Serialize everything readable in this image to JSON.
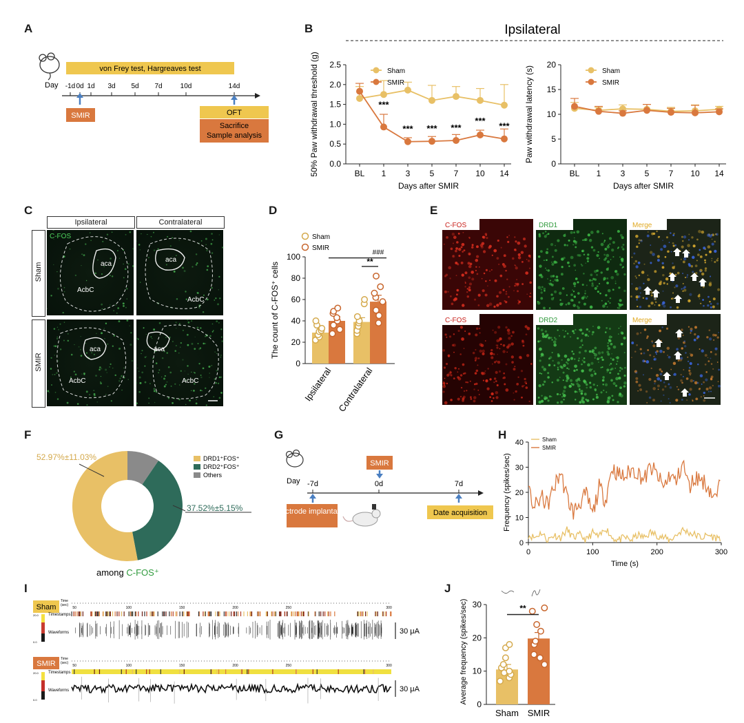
{
  "colors": {
    "sham": "#e8c066",
    "smir": "#d9783e",
    "sham_dark": "#d4a94c",
    "smir_dark": "#c8662d",
    "drd2": "#2e6b5a",
    "others": "#8a8a8a",
    "arrow": "#4a7fc1",
    "cfos": "#c8201a",
    "drd": "#2f9a3c",
    "merge": "#e8b830"
  },
  "panels": {
    "a": "A",
    "b": "B",
    "c": "C",
    "d": "D",
    "e": "E",
    "f": "F",
    "g": "G",
    "h": "H",
    "i": "I",
    "j": "J"
  },
  "timeline_a": {
    "day_label": "Day",
    "days": [
      "-1d",
      "0d",
      "1d",
      "3d",
      "5d",
      "7d",
      "10d",
      "14d"
    ],
    "test_bar": "von Frey test, Hargreaves test",
    "smir": "SMIR",
    "oft": "OFT",
    "sacrifice": "Sacrifice",
    "sample": "Sample analysis"
  },
  "panel_b_title": "Ipsilateral",
  "panel_c": {
    "col_ipsi": "Ipsilateral",
    "col_contra": "Contralateral",
    "row_sham": "Sham",
    "row_smir": "SMIR",
    "stain": "C-FOS",
    "aca": "aca",
    "acbc": "AcbC"
  },
  "panel_e": {
    "row1": [
      "C-FOS",
      "DRD1",
      "Merge"
    ],
    "row2": [
      "C-FOS",
      "DRD2",
      "Merge"
    ]
  },
  "panel_f": {
    "pct_drd1": "52.97%±11.03%",
    "pct_drd2": "37.52%±5.15%",
    "legend": [
      "DRD1⁺FOS⁺",
      "DRD2⁺FOS⁺",
      "Others"
    ],
    "among_prefix": "among ",
    "among_cfos": "C-FOS⁺"
  },
  "timeline_g": {
    "day_label": "Day",
    "days": [
      "-7d",
      "0d",
      "7d"
    ],
    "smir": "SMIR",
    "electrode": "Electrode implantation",
    "date_acq": "Date acquisition"
  },
  "panel_i": {
    "sham_tag": "Sham",
    "smir_tag": "SMIR",
    "time_lbl": "Time (sec)",
    "timestamps": "Timestamps",
    "waveforms": "Waveforms",
    "scale": "30 μA",
    "ticks": [
      "50",
      "100",
      "150",
      "200",
      "250",
      "300"
    ],
    "cbar_top": "20.0",
    "cbar_bot": "0.0"
  },
  "chart_data": [
    {
      "id": "B1",
      "type": "line",
      "title": "",
      "xlabel": "Days after SMIR",
      "ylabel": "50% Paw withdrawal threshold (g)",
      "categories": [
        "BL",
        "1",
        "3",
        "5",
        "7",
        "10",
        "14"
      ],
      "ylim": [
        0,
        2.5
      ],
      "yticks": [
        "0.0",
        "0.5",
        "1.0",
        "1.5",
        "2.0",
        "2.5"
      ],
      "legend": [
        "Sham",
        "SMIR"
      ],
      "series": [
        {
          "name": "Sham",
          "values": [
            1.65,
            1.75,
            1.86,
            1.6,
            1.7,
            1.6,
            1.48
          ],
          "errors": [
            0.3,
            0.35,
            0.2,
            0.38,
            0.25,
            0.3,
            0.52
          ]
        },
        {
          "name": "SMIR",
          "values": [
            1.83,
            0.93,
            0.56,
            0.57,
            0.59,
            0.73,
            0.63
          ],
          "errors": [
            0.2,
            0.32,
            0.1,
            0.12,
            0.15,
            0.12,
            0.25
          ]
        }
      ],
      "annotations": [
        "",
        "***",
        "***",
        "***",
        "***",
        "***",
        "***"
      ]
    },
    {
      "id": "B2",
      "type": "line",
      "title": "",
      "xlabel": "Days after SMIR",
      "ylabel": "Paw withdrawal latency (s)",
      "categories": [
        "BL",
        "1",
        "3",
        "5",
        "7",
        "10",
        "14"
      ],
      "ylim": [
        0,
        20
      ],
      "yticks": [
        "0",
        "5",
        "10",
        "15",
        "20"
      ],
      "legend": [
        "Sham",
        "SMIR"
      ],
      "series": [
        {
          "name": "Sham",
          "values": [
            11.2,
            10.8,
            11.1,
            11.0,
            10.6,
            10.7,
            11.0
          ],
          "errors": [
            1.2,
            0.6,
            0.8,
            1.0,
            0.8,
            1.2,
            0.6
          ]
        },
        {
          "name": "SMIR",
          "values": [
            11.6,
            10.6,
            10.2,
            10.8,
            10.4,
            10.3,
            10.5
          ],
          "errors": [
            1.6,
            1.0,
            0.5,
            1.2,
            0.8,
            1.5,
            0.6
          ]
        }
      ]
    },
    {
      "id": "D",
      "type": "bar",
      "ylabel": "The count of C-FOS⁺ cells",
      "categories": [
        "Ipsilateral",
        "Contralateral"
      ],
      "ylim": [
        0,
        100
      ],
      "yticks": [
        "0",
        "20",
        "40",
        "60",
        "80",
        "100"
      ],
      "legend": [
        "Sham",
        "SMIR"
      ],
      "series": [
        {
          "name": "Sham",
          "values": [
            29,
            39
          ],
          "errors": [
            3,
            4
          ],
          "points": [
            [
              22,
              25,
              27,
              30,
              31,
              33,
              36,
              40
            ],
            [
              28,
              31,
              35,
              38,
              40,
              44,
              56,
              60
            ]
          ]
        },
        {
          "name": "SMIR",
          "values": [
            40,
            58
          ],
          "errors": [
            4,
            6
          ],
          "points": [
            [
              28,
              32,
              36,
              40,
              43,
              47,
              49,
              52
            ],
            [
              38,
              45,
              50,
              58,
              62,
              66,
              72,
              82
            ]
          ]
        }
      ],
      "annotations": {
        "between": "###",
        "within": "**"
      }
    },
    {
      "id": "F",
      "type": "pie",
      "labels": [
        "DRD1⁺FOS⁺",
        "DRD2⁺FOS⁺",
        "Others"
      ],
      "values": [
        52.97,
        37.52,
        9.51
      ]
    },
    {
      "id": "H",
      "type": "line",
      "xlabel": "Time (s)",
      "ylabel": "Frequency (spikes/sec)",
      "xlim": [
        0,
        300
      ],
      "ylim": [
        0,
        40
      ],
      "xticks": [
        "0",
        "100",
        "200",
        "300"
      ],
      "yticks": [
        "0",
        "10",
        "20",
        "30",
        "40"
      ],
      "legend": [
        "Sham",
        "SMIR"
      ],
      "series": [
        {
          "name": "Sham",
          "x": [
            0,
            10,
            20,
            30,
            40,
            50,
            60,
            70,
            80,
            90,
            100,
            110,
            120,
            130,
            140,
            150,
            160,
            170,
            180,
            190,
            200,
            210,
            220,
            230,
            240,
            250,
            260,
            270,
            280,
            290,
            300
          ],
          "values": [
            3,
            2,
            4,
            1,
            3,
            2,
            5,
            2,
            3,
            1,
            4,
            2,
            6,
            2,
            1,
            2,
            1,
            3,
            2,
            4,
            3,
            2,
            1,
            3,
            5,
            4,
            3,
            2,
            3,
            2,
            2
          ]
        },
        {
          "name": "SMIR",
          "x": [
            0,
            10,
            20,
            30,
            40,
            50,
            60,
            70,
            80,
            90,
            100,
            110,
            120,
            130,
            140,
            150,
            160,
            170,
            180,
            190,
            200,
            210,
            220,
            230,
            240,
            250,
            260,
            270,
            280,
            290,
            300
          ],
          "values": [
            20,
            14,
            18,
            15,
            22,
            28,
            18,
            12,
            16,
            19,
            11,
            22,
            17,
            30,
            27,
            26,
            29,
            28,
            25,
            30,
            27,
            22,
            27,
            24,
            32,
            22,
            26,
            25,
            22,
            17,
            24
          ]
        }
      ]
    },
    {
      "id": "J",
      "type": "bar",
      "ylabel": "Average frequency (spikes/sec)",
      "categories": [
        "Sham",
        "SMIR"
      ],
      "ylim": [
        0,
        30
      ],
      "yticks": [
        "0",
        "10",
        "20",
        "30"
      ],
      "series": [
        {
          "name": "Average",
          "values": [
            10.5,
            19.8
          ],
          "errors": [
            1.5,
            1.8
          ],
          "points": [
            [
              7,
              8,
              9,
              9.5,
              10,
              11,
              12,
              14,
              17,
              18
            ],
            [
              12,
              14,
              15,
              18,
              19,
              22,
              24,
              28,
              29
            ]
          ]
        }
      ],
      "annotations": {
        "between": "**"
      }
    }
  ]
}
